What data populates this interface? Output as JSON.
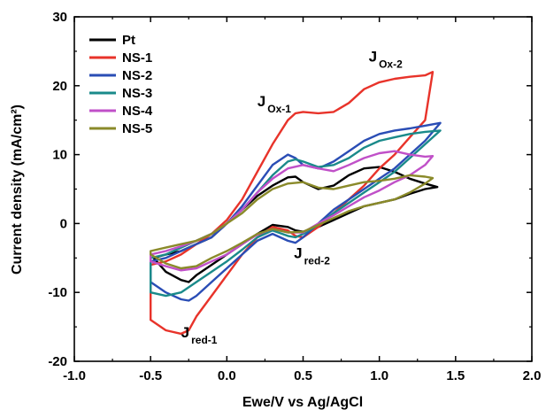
{
  "chart_data": {
    "type": "line",
    "xlabel": "Ewe/V vs Ag/AgCl",
    "ylabel": "Current density (mA/cm²)",
    "xlim": [
      -1.0,
      2.0
    ],
    "ylim": [
      -20,
      30
    ],
    "x_ticks": [
      "-1.0",
      "-0.5",
      "0.0",
      "0.5",
      "1.0",
      "1.5",
      "2.0"
    ],
    "y_ticks": [
      "-20",
      "-10",
      "0",
      "10",
      "20",
      "30"
    ],
    "grid": false,
    "legend_position": "top-left",
    "series": [
      {
        "name": "Pt",
        "color": "#000000",
        "x": [
          -0.48,
          -0.4,
          -0.3,
          -0.2,
          -0.1,
          0.0,
          0.1,
          0.2,
          0.3,
          0.4,
          0.45,
          0.5,
          0.6,
          0.7,
          0.8,
          0.9,
          1.0,
          1.1,
          1.2,
          1.3,
          1.38,
          1.3,
          1.2,
          1.1,
          1.0,
          0.9,
          0.8,
          0.7,
          0.6,
          0.5,
          0.45,
          0.4,
          0.3,
          0.2,
          0.1,
          0.0,
          -0.1,
          -0.2,
          -0.25,
          -0.3,
          -0.4,
          -0.48
        ],
        "y": [
          -5.0,
          -4.5,
          -4.0,
          -3.0,
          -2.0,
          0.0,
          2.0,
          4.0,
          5.5,
          6.7,
          6.8,
          6.0,
          5.0,
          5.5,
          7.0,
          8.0,
          8.2,
          7.5,
          6.5,
          5.8,
          5.3,
          5.0,
          4.3,
          3.5,
          3.0,
          2.5,
          1.5,
          0.5,
          -0.5,
          -1.2,
          -1.0,
          -0.5,
          -0.2,
          -1.5,
          -3.0,
          -4.5,
          -6.0,
          -7.5,
          -8.5,
          -8.2,
          -7.0,
          -5.0
        ]
      },
      {
        "name": "NS-1",
        "color": "#e8332a",
        "x": [
          -0.5,
          -0.4,
          -0.3,
          -0.2,
          -0.1,
          0.0,
          0.1,
          0.2,
          0.3,
          0.4,
          0.45,
          0.5,
          0.6,
          0.7,
          0.8,
          0.9,
          1.0,
          1.1,
          1.2,
          1.3,
          1.35,
          1.3,
          1.2,
          1.1,
          1.0,
          0.9,
          0.8,
          0.7,
          0.6,
          0.5,
          0.45,
          0.4,
          0.3,
          0.2,
          0.1,
          0.0,
          -0.1,
          -0.2,
          -0.25,
          -0.3,
          -0.4,
          -0.5
        ],
        "y": [
          -6.0,
          -5.5,
          -4.5,
          -3.0,
          -1.5,
          0.5,
          3.5,
          7.5,
          11.5,
          15.0,
          16.0,
          16.2,
          16.0,
          16.2,
          17.5,
          19.5,
          20.5,
          21.0,
          21.3,
          21.5,
          22.0,
          15.0,
          12.5,
          10.0,
          8.0,
          5.5,
          3.5,
          1.5,
          -0.5,
          -2.0,
          -1.8,
          -1.0,
          -0.5,
          -2.0,
          -4.5,
          -7.5,
          -10.5,
          -13.5,
          -15.5,
          -16.0,
          -15.5,
          -14.0
        ]
      },
      {
        "name": "NS-2",
        "color": "#2a4db5",
        "x": [
          -0.5,
          -0.4,
          -0.3,
          -0.2,
          -0.1,
          0.0,
          0.1,
          0.2,
          0.3,
          0.4,
          0.45,
          0.5,
          0.6,
          0.7,
          0.8,
          0.9,
          1.0,
          1.1,
          1.2,
          1.3,
          1.4,
          1.3,
          1.2,
          1.1,
          1.0,
          0.9,
          0.8,
          0.7,
          0.6,
          0.5,
          0.45,
          0.4,
          0.3,
          0.2,
          0.1,
          0.0,
          -0.1,
          -0.2,
          -0.25,
          -0.3,
          -0.4,
          -0.5
        ],
        "y": [
          -5.5,
          -5.0,
          -4.0,
          -3.0,
          -2.0,
          0.0,
          2.5,
          5.5,
          8.5,
          10.0,
          9.5,
          8.5,
          8.0,
          9.0,
          10.5,
          12.0,
          13.0,
          13.5,
          13.8,
          14.2,
          14.6,
          12.0,
          10.0,
          8.0,
          6.5,
          5.0,
          3.5,
          2.0,
          0.0,
          -2.0,
          -2.8,
          -2.5,
          -1.5,
          -2.5,
          -4.5,
          -6.5,
          -8.5,
          -10.5,
          -11.2,
          -11.0,
          -10.0,
          -8.5
        ]
      },
      {
        "name": "NS-3",
        "color": "#1a8a8a",
        "x": [
          -0.5,
          -0.4,
          -0.3,
          -0.2,
          -0.1,
          0.0,
          0.1,
          0.2,
          0.3,
          0.4,
          0.45,
          0.5,
          0.6,
          0.7,
          0.8,
          0.9,
          1.0,
          1.1,
          1.2,
          1.3,
          1.4,
          1.3,
          1.2,
          1.1,
          1.0,
          0.9,
          0.8,
          0.7,
          0.6,
          0.5,
          0.45,
          0.4,
          0.3,
          0.2,
          0.1,
          0.0,
          -0.1,
          -0.2,
          -0.3,
          -0.4,
          -0.5
        ],
        "y": [
          -5.0,
          -4.5,
          -3.5,
          -2.5,
          -1.5,
          0.0,
          2.0,
          4.5,
          7.0,
          9.0,
          9.3,
          9.0,
          8.2,
          8.5,
          9.5,
          11.0,
          12.0,
          12.5,
          13.0,
          13.3,
          13.5,
          11.5,
          9.5,
          7.5,
          6.0,
          4.5,
          3.0,
          1.5,
          -0.2,
          -1.5,
          -2.0,
          -1.8,
          -1.0,
          -2.0,
          -3.8,
          -5.5,
          -7.0,
          -8.5,
          -10.0,
          -10.5,
          -10.0
        ]
      },
      {
        "name": "NS-4",
        "color": "#c050c8",
        "x": [
          -0.5,
          -0.4,
          -0.3,
          -0.2,
          -0.1,
          0.0,
          0.1,
          0.2,
          0.3,
          0.4,
          0.5,
          0.6,
          0.7,
          0.8,
          0.9,
          1.0,
          1.1,
          1.2,
          1.3,
          1.35,
          1.3,
          1.2,
          1.1,
          1.0,
          0.9,
          0.8,
          0.7,
          0.6,
          0.5,
          0.4,
          0.3,
          0.2,
          0.1,
          0.0,
          -0.1,
          -0.2,
          -0.3,
          -0.4,
          -0.5
        ],
        "y": [
          -4.5,
          -4.0,
          -3.3,
          -2.5,
          -1.5,
          0.0,
          2.0,
          4.5,
          6.5,
          8.0,
          8.5,
          8.0,
          7.6,
          8.5,
          9.5,
          10.2,
          10.5,
          10.0,
          9.7,
          9.8,
          8.5,
          7.0,
          6.0,
          4.8,
          3.8,
          2.5,
          1.2,
          0.0,
          -1.3,
          -1.3,
          -0.8,
          -1.6,
          -3.0,
          -4.5,
          -5.5,
          -6.5,
          -6.8,
          -6.2,
          -5.5
        ]
      },
      {
        "name": "NS-5",
        "color": "#8a8a2a",
        "x": [
          -0.5,
          -0.4,
          -0.3,
          -0.2,
          -0.1,
          0.0,
          0.1,
          0.2,
          0.3,
          0.4,
          0.5,
          0.6,
          0.7,
          0.8,
          0.9,
          1.0,
          1.1,
          1.2,
          1.3,
          1.35,
          1.3,
          1.2,
          1.1,
          1.0,
          0.9,
          0.8,
          0.7,
          0.6,
          0.5,
          0.4,
          0.3,
          0.2,
          0.1,
          0.0,
          -0.1,
          -0.2,
          -0.3,
          -0.4,
          -0.5
        ],
        "y": [
          -4.0,
          -3.5,
          -3.0,
          -2.5,
          -1.5,
          0.0,
          1.5,
          3.5,
          5.0,
          5.8,
          6.0,
          5.2,
          5.0,
          5.5,
          6.0,
          6.2,
          6.5,
          7.0,
          6.8,
          6.6,
          5.8,
          4.5,
          3.5,
          3.0,
          2.5,
          1.8,
          0.8,
          -0.2,
          -1.2,
          -1.3,
          -0.8,
          -1.5,
          -2.8,
          -4.0,
          -5.0,
          -6.2,
          -6.5,
          -5.8,
          -4.5
        ]
      }
    ],
    "annotations": [
      {
        "main": "J",
        "sub": "Ox-1",
        "x": 0.2,
        "y": 17.0
      },
      {
        "main": "J",
        "sub": "Ox-2",
        "x": 0.93,
        "y": 23.5
      },
      {
        "main": "J",
        "sub": "red-2",
        "x": 0.44,
        "y": -5.0
      },
      {
        "main": "J",
        "sub": "red-1",
        "x": -0.3,
        "y": -16.5
      }
    ]
  }
}
